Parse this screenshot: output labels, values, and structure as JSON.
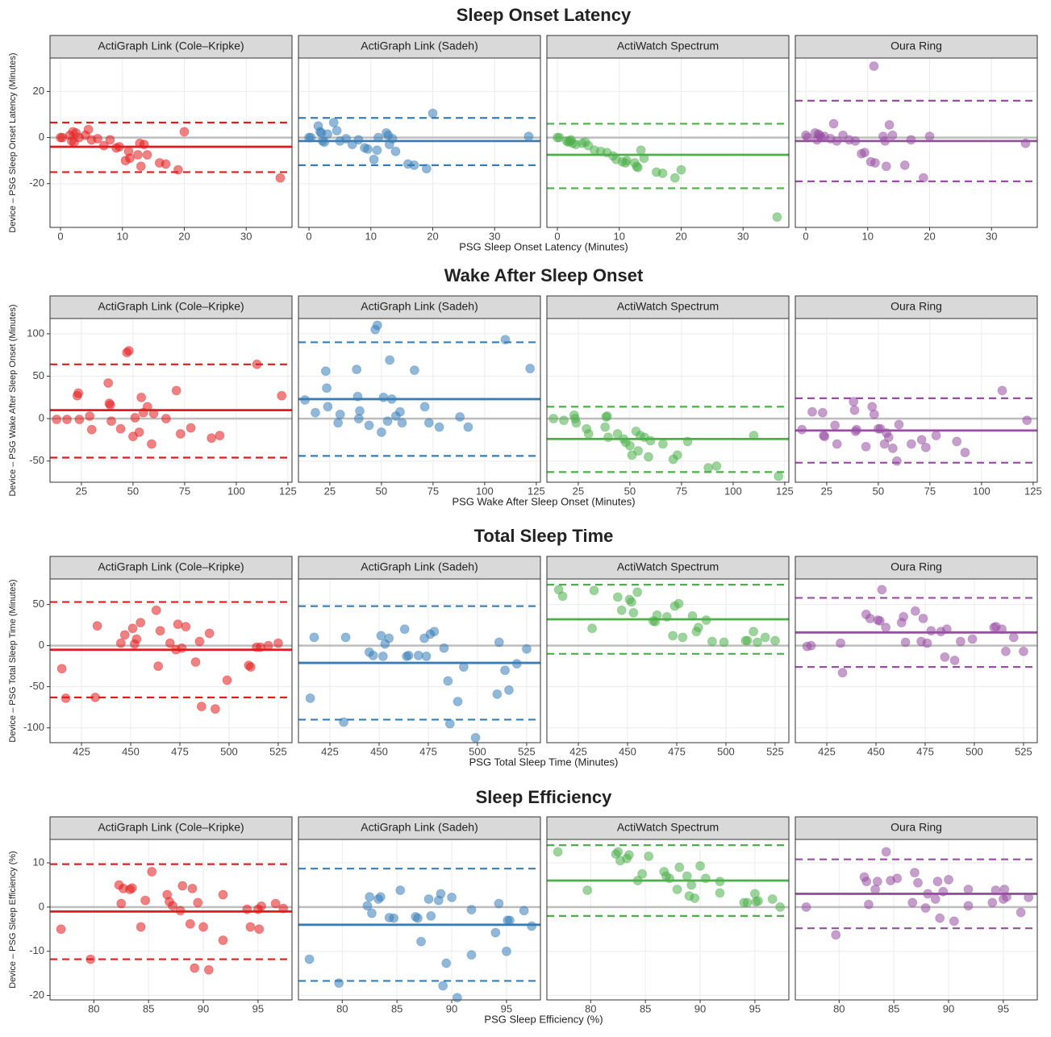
{
  "chart_data": [
    {
      "type": "scatter",
      "title": "Sleep Onset Latency",
      "x_label": "PSG Sleep Onset Latency (Minutes)",
      "y_label": "Device – PSG Sleep Onset Latency (Minutes)",
      "xlim": [
        -1.7,
        37.4
      ],
      "xticks": [
        0,
        10,
        20,
        30
      ],
      "ylim": [
        -39,
        34.5
      ],
      "yticks": [
        -20,
        0,
        20
      ],
      "grid": true,
      "reference_line": 0,
      "x": [
        0,
        0.3,
        1.5,
        1.8,
        2,
        2.2,
        2.5,
        3,
        4,
        4.5,
        5,
        6,
        7,
        8,
        9,
        9.5,
        10.5,
        11,
        11.2,
        12.5,
        12.8,
        13,
        13.5,
        14,
        16,
        17,
        19,
        20,
        35.5
      ],
      "series": [
        {
          "name": "ActiGraph Link (Cole–Kripke)",
          "color": "#e41a1c",
          "mean": -4,
          "upper": 6.5,
          "lower": -15,
          "values": [
            0,
            0,
            1,
            -1.5,
            2.5,
            -2,
            2,
            0,
            1,
            3.5,
            -1,
            -0.5,
            -3.5,
            -1,
            -4.5,
            -4,
            -10,
            -6,
            -9,
            -7.5,
            -2.5,
            -12.5,
            -3,
            -7.5,
            -11,
            -11.5,
            -14,
            2.5,
            -17.5
          ]
        },
        {
          "name": "ActiGraph Link (Sadeh)",
          "color": "#377eb8",
          "mean": -1.5,
          "upper": 8.5,
          "lower": -12,
          "values": [
            0,
            0,
            5,
            2.5,
            2,
            -1.5,
            -2,
            1.5,
            6.5,
            3,
            -1.5,
            -0.5,
            -3,
            -1,
            -4.5,
            -5,
            -9.5,
            -5.5,
            0,
            2,
            1,
            -3,
            -0.5,
            -6,
            -11.5,
            -12,
            -13.5,
            10.5,
            0.5
          ]
        },
        {
          "name": "ActiWatch Spectrum",
          "color": "#4daf4a",
          "mean": -7.5,
          "upper": 6,
          "lower": -22,
          "values": [
            0,
            0,
            -1.5,
            -2,
            -1.5,
            -1,
            -2.5,
            -3,
            -2.5,
            -2,
            -3.5,
            -5.5,
            -6,
            -6.5,
            -8,
            -9.5,
            -10.5,
            -11,
            -10,
            -11,
            -12.5,
            -13,
            -5.5,
            -9,
            -15,
            -15.5,
            -17.5,
            -14,
            -34.5
          ]
        },
        {
          "name": "Oura Ring",
          "color": "#984ea3",
          "mean": -1.5,
          "upper": 16,
          "lower": -19,
          "values": [
            1,
            0,
            2,
            -1,
            1.5,
            1,
            0,
            0.5,
            -0.5,
            6,
            -1.5,
            1,
            -1,
            -1.5,
            -7,
            -6.5,
            -10.5,
            31,
            -11,
            0.5,
            -1.5,
            -12.5,
            5.5,
            1,
            -12,
            -1,
            -17.5,
            0.5,
            -2.5
          ]
        }
      ]
    },
    {
      "type": "scatter",
      "title": "Wake After Sleep Onset",
      "x_label": "PSG Wake After Sleep Onset (Minutes)",
      "y_label": "Device – PSG Wake After Sleep Onset (Minutes)",
      "xlim": [
        9.8,
        127
      ],
      "xticks": [
        25,
        50,
        75,
        100,
        125
      ],
      "ylim": [
        -75,
        118
      ],
      "yticks": [
        -50,
        0,
        50,
        100
      ],
      "grid": true,
      "reference_line": 0,
      "x": [
        13,
        18,
        23,
        23.5,
        24,
        29,
        30,
        38,
        38.5,
        39,
        39.5,
        44,
        47,
        48,
        50,
        51,
        53,
        54,
        55,
        57,
        59,
        60,
        66,
        71,
        73,
        78,
        88,
        92,
        110,
        122
      ],
      "series": [
        {
          "name": "ActiGraph Link (Cole–Kripke)",
          "color": "#e41a1c",
          "mean": 10,
          "upper": 64,
          "lower": -46,
          "values": [
            -1,
            -1,
            27,
            30,
            -1,
            3,
            -13,
            42,
            18,
            16,
            -3,
            -12,
            78,
            80,
            -21,
            1,
            -16,
            25,
            7,
            14,
            -30,
            6,
            0,
            33,
            -18,
            -11,
            -23,
            -20,
            64,
            27
          ]
        },
        {
          "name": "ActiGraph Link (Sadeh)",
          "color": "#377eb8",
          "mean": 23,
          "upper": 90,
          "lower": -44,
          "values": [
            22,
            7,
            56,
            36,
            14,
            -5,
            5,
            58,
            26,
            0,
            9,
            -8,
            105,
            110,
            -16,
            25,
            -3,
            69,
            23,
            3,
            8,
            -5,
            57,
            14,
            -5,
            -10,
            2,
            -10,
            93,
            59
          ]
        },
        {
          "name": "ActiWatch Spectrum",
          "color": "#4daf4a",
          "mean": -24,
          "upper": 14,
          "lower": -63,
          "values": [
            0,
            -2,
            4,
            0,
            -5,
            -12,
            -18,
            -10,
            2,
            3,
            -22,
            -18,
            -24,
            -28,
            -32,
            -43,
            -15,
            -38,
            -20,
            -22,
            -45,
            -26,
            -30,
            -48,
            -43,
            -27,
            -58,
            -56,
            -20,
            -68
          ]
        },
        {
          "name": "Oura Ring",
          "color": "#984ea3",
          "mean": -14,
          "upper": 24,
          "lower": -52,
          "values": [
            -13,
            8,
            7,
            -20,
            -21,
            -8,
            -30,
            20,
            10,
            -15,
            -13,
            -33,
            14,
            5,
            -12,
            -12,
            -30,
            -17,
            -22,
            -35,
            -50,
            -7,
            -30,
            -25,
            -34,
            -20,
            -27,
            -40,
            33,
            -2
          ]
        }
      ]
    },
    {
      "type": "scatter",
      "title": "Total Sleep Time",
      "x_label": "PSG Total Sleep Time (Minutes)",
      "y_label": "Device – PSG Total Sleep Time (Minutes)",
      "xlim": [
        409,
        532
      ],
      "xticks": [
        425,
        450,
        475,
        500,
        525
      ],
      "ylim": [
        -118,
        81
      ],
      "yticks": [
        -100,
        -50,
        0,
        50
      ],
      "grid": true,
      "reference_line": 0,
      "x": [
        415,
        417,
        432,
        433,
        445,
        447,
        451,
        452,
        453,
        455,
        463,
        464,
        465,
        470,
        473,
        474,
        476,
        478,
        483,
        485,
        486,
        490,
        493,
        499,
        510,
        511,
        514,
        516,
        520,
        525
      ],
      "series": [
        {
          "name": "ActiGraph Link (Cole–Kripke)",
          "color": "#e41a1c",
          "mean": -5,
          "upper": 53,
          "lower": -63,
          "values": [
            -28,
            -64,
            -63,
            24,
            3,
            13,
            21,
            2,
            8,
            28,
            43,
            -25,
            18,
            3,
            -5,
            26,
            -3,
            23,
            -20,
            5,
            -74,
            15,
            -77,
            -42,
            -24,
            -26,
            -2,
            -2,
            0,
            3
          ]
        },
        {
          "name": "ActiGraph Link (Sadeh)",
          "color": "#377eb8",
          "mean": -21,
          "upper": 48,
          "lower": -90,
          "values": [
            -64,
            10,
            -93,
            10,
            -8,
            -12,
            12,
            -13,
            2,
            9,
            20,
            -13,
            -12,
            -12,
            9,
            -13,
            14,
            17,
            -3,
            -43,
            -95,
            -68,
            -26,
            -112,
            -59,
            4,
            -30,
            -54,
            -22,
            -4
          ]
        },
        {
          "name": "ActiWatch Spectrum",
          "color": "#4daf4a",
          "mean": 32,
          "upper": 74,
          "lower": -10,
          "values": [
            68,
            60,
            21,
            67,
            59,
            43,
            56,
            53,
            40,
            65,
            30,
            29,
            37,
            35,
            12,
            48,
            51,
            10,
            36,
            17,
            22,
            31,
            5,
            4,
            6,
            6,
            17,
            4,
            10,
            6
          ]
        },
        {
          "name": "Oura Ring",
          "color": "#984ea3",
          "mean": 16,
          "upper": 58,
          "lower": -26,
          "values": [
            -1,
            0,
            3,
            -33,
            38,
            33,
            31,
            30,
            68,
            22,
            28,
            35,
            4,
            42,
            5,
            33,
            3,
            18,
            17,
            -14,
            20,
            -18,
            5,
            8,
            22,
            23,
            20,
            -7,
            10,
            -7
          ]
        }
      ]
    },
    {
      "type": "scatter",
      "title": "Sleep Efficiency",
      "x_label": "PSG Sleep Efficiency (%)",
      "y_label": "Device – PSG Sleep Efficiency (%)",
      "xlim": [
        76,
        98.1
      ],
      "xticks": [
        80,
        85,
        90,
        95
      ],
      "ylim": [
        -21,
        15.3
      ],
      "yticks": [
        -20,
        -10,
        0,
        10
      ],
      "grid": true,
      "reference_line": 0,
      "x": [
        77,
        79.7,
        82.3,
        82.5,
        82.7,
        83.3,
        83.5,
        84.3,
        84.7,
        85.3,
        86.7,
        86.9,
        87.2,
        87.9,
        88.1,
        88.8,
        89,
        89.2,
        89.5,
        90,
        90.5,
        91.8,
        91.8,
        94,
        94.3,
        95,
        95.1,
        95.3,
        96.6,
        97.3
      ],
      "series": [
        {
          "name": "ActiGraph Link (Cole–Kripke)",
          "color": "#e41a1c",
          "mean": -1,
          "upper": 9.7,
          "lower": -11.8,
          "values": [
            -5,
            -11.8,
            5,
            0.8,
            4.2,
            4,
            4.3,
            -4.5,
            1.5,
            8,
            2.8,
            1.2,
            0.3,
            -0.8,
            4.8,
            -3.8,
            4.2,
            -13.8,
            1,
            -4.5,
            -14.2,
            2.8,
            -7.5,
            -0.5,
            -4.5,
            -0.5,
            -5,
            0.2,
            0.8,
            -0.3
          ]
        },
        {
          "name": "ActiGraph Link (Sadeh)",
          "color": "#377eb8",
          "mean": -4,
          "upper": 8.7,
          "lower": -16.7,
          "values": [
            -11.8,
            -17.2,
            0.3,
            2.3,
            -1.4,
            1.8,
            2.3,
            -2.4,
            -2.5,
            3.8,
            -2.2,
            -2.5,
            -7.8,
            1.8,
            -2,
            1.5,
            3,
            -17.8,
            -12.7,
            2.2,
            -20.5,
            -0.6,
            -10.8,
            -5.8,
            0.8,
            -10,
            -3,
            -3,
            -0.8,
            -4.3
          ]
        },
        {
          "name": "ActiWatch Spectrum",
          "color": "#4daf4a",
          "mean": 6,
          "upper": 14,
          "lower": -2,
          "values": [
            12.5,
            3.8,
            12,
            12.5,
            10.5,
            11,
            11.8,
            6,
            7.5,
            11.5,
            8,
            7,
            6.5,
            4,
            9,
            7,
            2.5,
            5,
            2,
            9.3,
            6.5,
            5.8,
            3.2,
            1,
            1,
            3,
            1.2,
            1.4,
            1.8,
            0
          ]
        },
        {
          "name": "Oura Ring",
          "color": "#984ea3",
          "mean": 3,
          "upper": 10.8,
          "lower": -4.8,
          "values": [
            0,
            -6.3,
            6.8,
            5.8,
            0.6,
            4,
            5.8,
            12.5,
            6,
            6.5,
            1,
            7.8,
            5.5,
            -0.2,
            3,
            1.8,
            5.8,
            -2.5,
            3.5,
            6.2,
            -3.2,
            4,
            0.3,
            1,
            3.8,
            1.8,
            4,
            2.3,
            -1.2,
            2.2
          ]
        }
      ]
    }
  ]
}
